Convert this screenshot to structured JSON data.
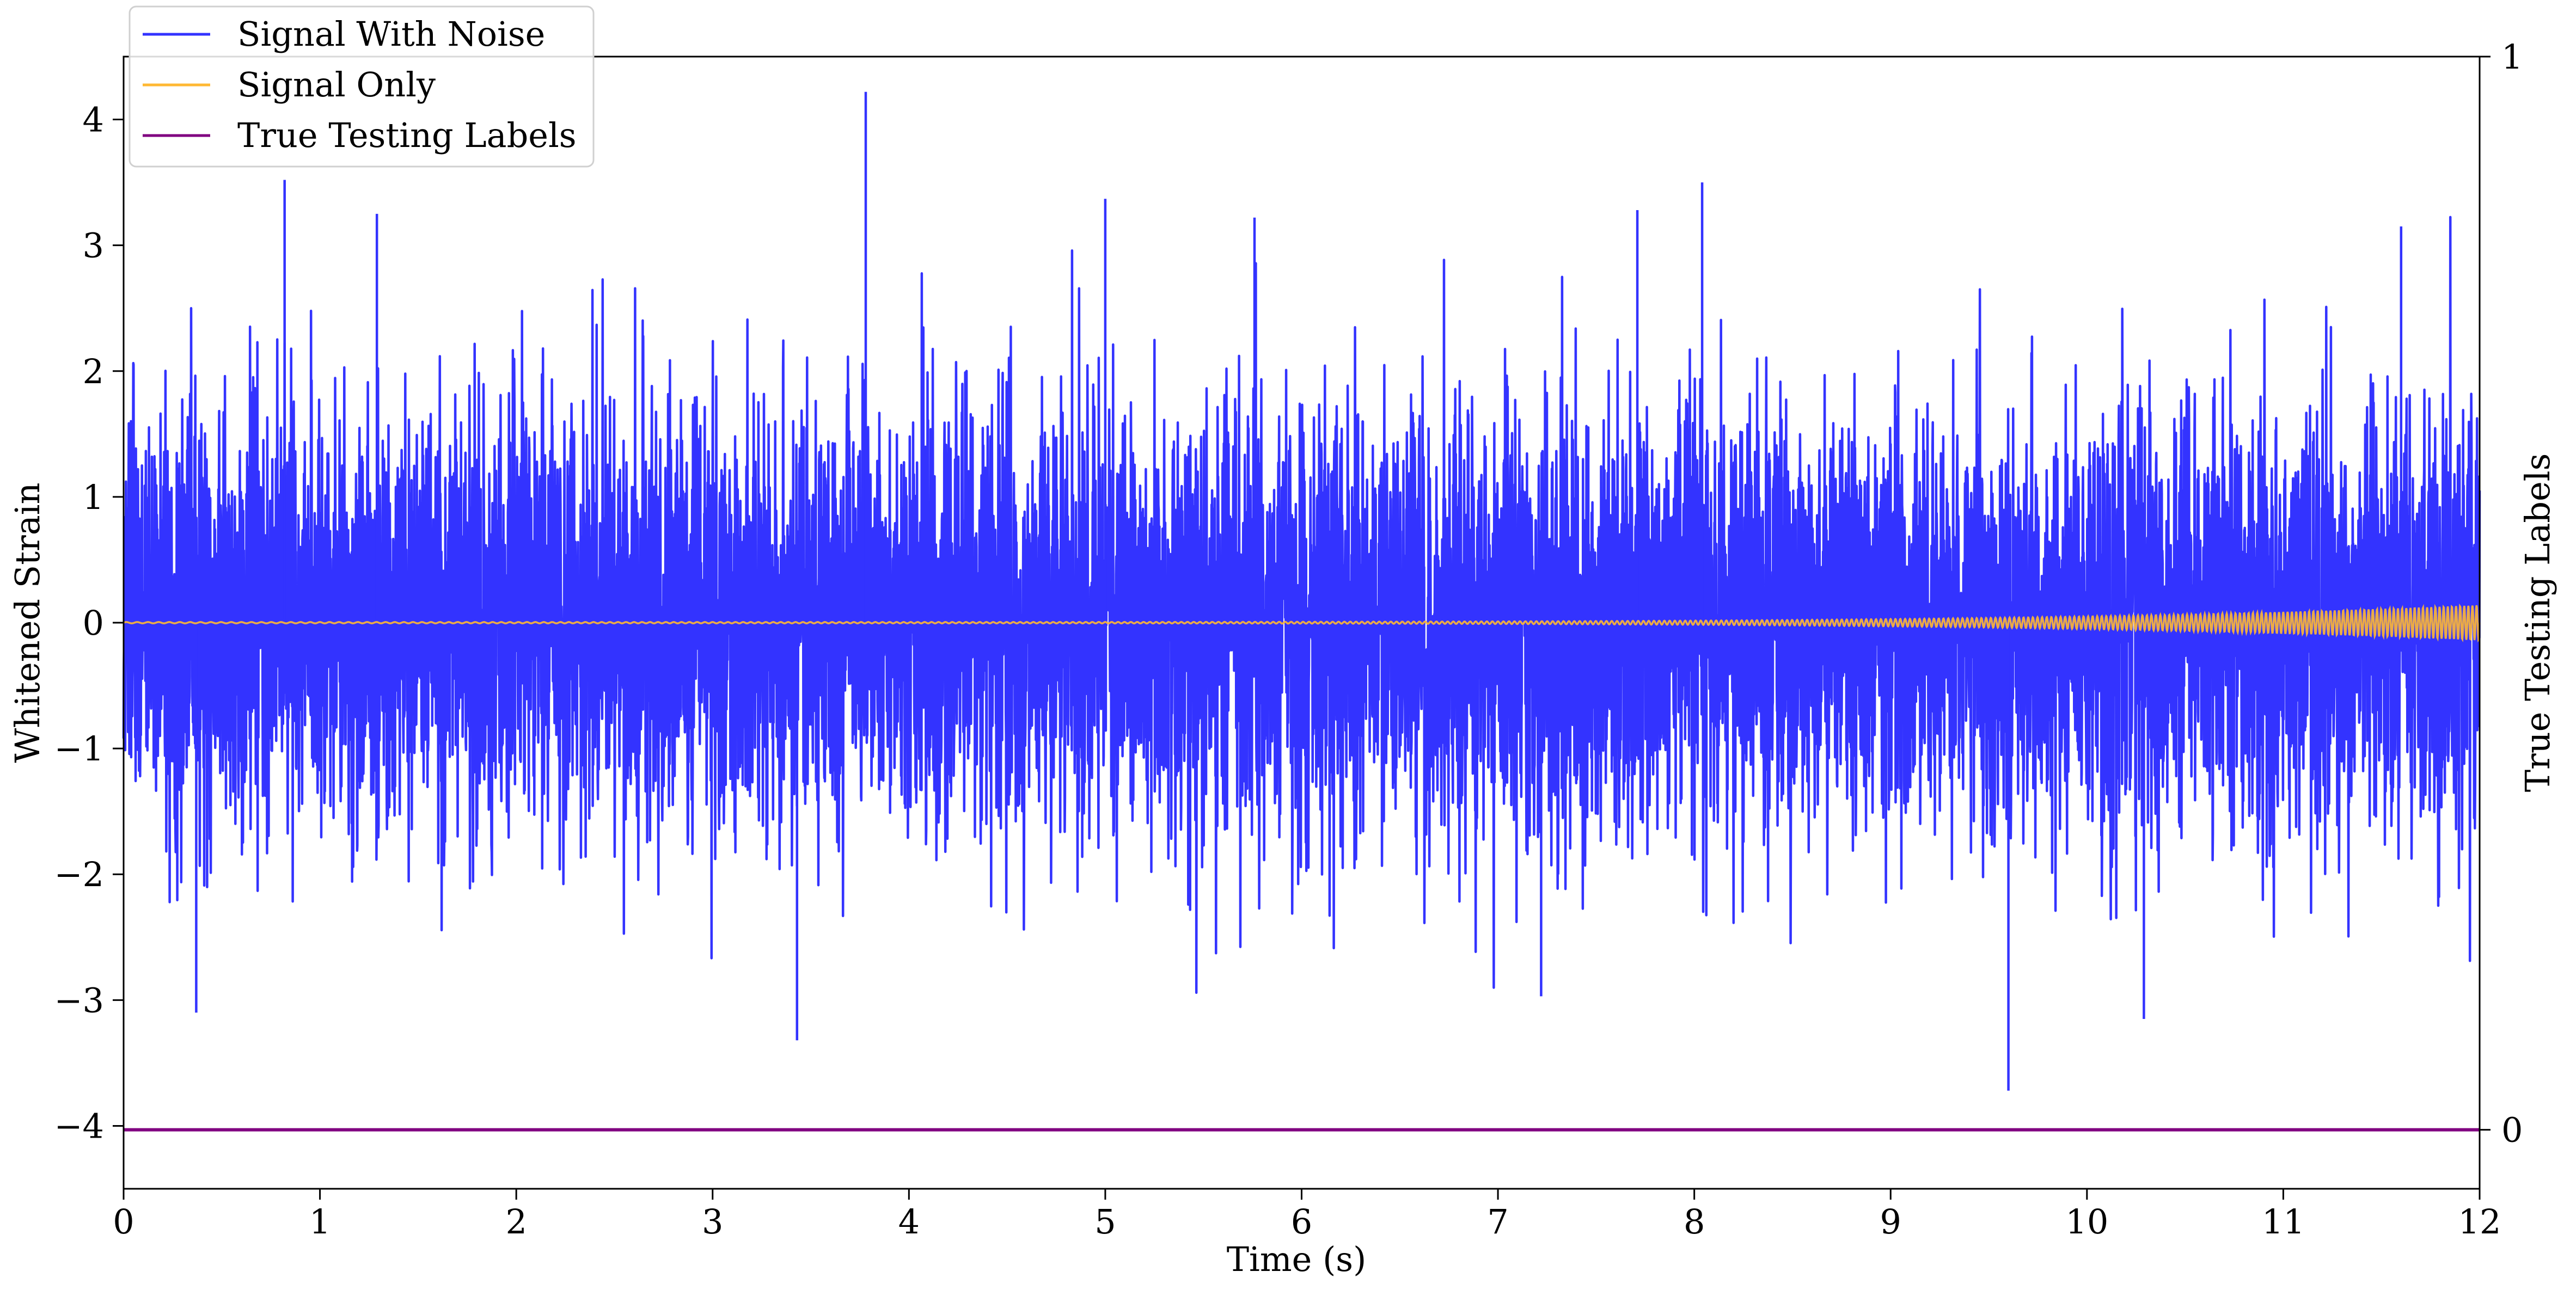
{
  "chart_data": {
    "type": "line",
    "title": "",
    "xlabel": "Time (s)",
    "ylabel": "Whitened Strain",
    "y2label": "True Testing Labels",
    "xlim": [
      0,
      12
    ],
    "ylim": [
      -4.5,
      4.5
    ],
    "y2lim": [
      -0.055,
      1
    ],
    "x_ticks": [
      0,
      1,
      2,
      3,
      4,
      5,
      6,
      7,
      8,
      9,
      10,
      11,
      12
    ],
    "x_tick_labels": [
      "0",
      "1",
      "2",
      "3",
      "4",
      "5",
      "6",
      "7",
      "8",
      "9",
      "10",
      "11",
      "12"
    ],
    "y_ticks": [
      -4,
      -3,
      -2,
      -1,
      0,
      1,
      2,
      3,
      4
    ],
    "y_tick_labels": [
      "−4",
      "−3",
      "−2",
      "−1",
      "0",
      "1",
      "2",
      "3",
      "4"
    ],
    "y2_ticks": [
      0,
      1
    ],
    "y2_tick_labels": [
      "0",
      "1"
    ],
    "grid": false,
    "legend_position": "top-left",
    "series": [
      {
        "name": "Signal With Noise",
        "axis": "left",
        "color": "#3333ff",
        "x_range": [
          0,
          12
        ],
        "noise_amplitude_sd": 0.85,
        "noise_peak_range": [
          -3.7,
          4.2
        ],
        "spikes": [
          {
            "x": 0.82,
            "y": 3.52
          },
          {
            "x": 1.29,
            "y": 3.25
          },
          {
            "x": 3.78,
            "y": 4.22
          },
          {
            "x": 5.0,
            "y": 3.37
          },
          {
            "x": 5.76,
            "y": 3.22
          },
          {
            "x": 7.71,
            "y": 3.28
          },
          {
            "x": 8.04,
            "y": 3.5
          },
          {
            "x": 11.6,
            "y": 3.15
          },
          {
            "x": 0.37,
            "y": -3.1
          },
          {
            "x": 3.43,
            "y": -3.32
          },
          {
            "x": 7.22,
            "y": -2.97
          },
          {
            "x": 9.6,
            "y": -3.72
          },
          {
            "x": 10.29,
            "y": -3.15
          }
        ]
      },
      {
        "name": "Signal Only",
        "axis": "left",
        "color": "#ffb833",
        "x_range": [
          0,
          12
        ],
        "envelope_start": 0.005,
        "envelope_end": 0.14,
        "frequency_start_hz": 18,
        "frequency_end_hz": 48
      },
      {
        "name": "True Testing Labels",
        "axis": "right",
        "color": "#800080",
        "x": [
          0,
          12
        ],
        "values": [
          0,
          0
        ]
      }
    ]
  }
}
